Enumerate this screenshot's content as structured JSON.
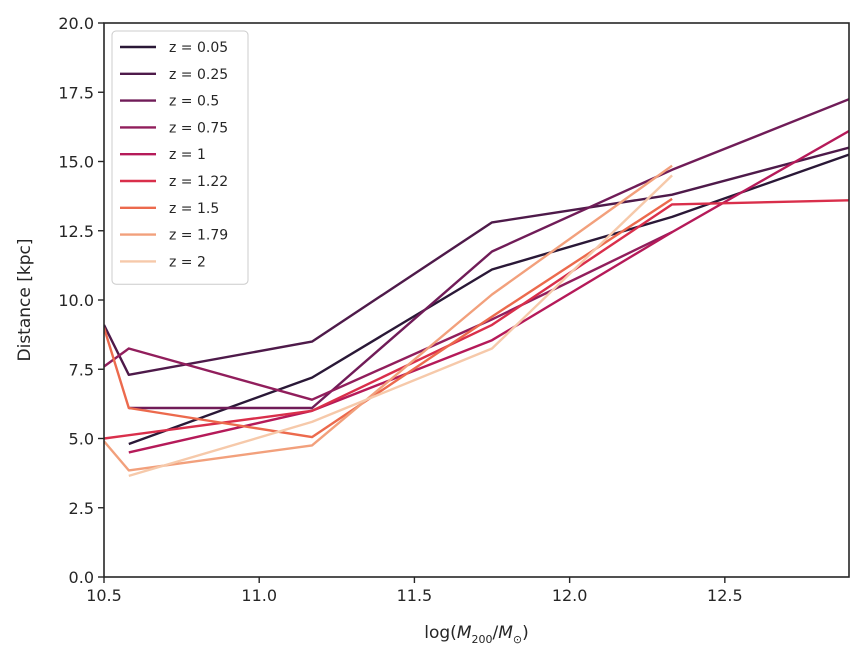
{
  "chart_data": {
    "type": "line",
    "title": "",
    "xlabel_parts": {
      "prefix": "log(",
      "m1": "M",
      "sub1": "200",
      "slash": "/",
      "m2": "M",
      "sub2": "⊙",
      "suffix": ")"
    },
    "ylabel": "Distance [kpc]",
    "xlim": [
      10.5,
      12.9
    ],
    "ylim": [
      0,
      20
    ],
    "xticks": [
      "10.5",
      "11.0",
      "11.5",
      "12.0",
      "12.5"
    ],
    "yticks": [
      "0.0",
      "2.5",
      "5.0",
      "7.5",
      "10.0",
      "12.5",
      "15.0",
      "17.5",
      "20.0"
    ],
    "legend_position": "upper-left",
    "series": [
      {
        "name": "z = 0.05",
        "color": "#2a1837",
        "x": [
          10.58,
          11.17,
          11.75,
          12.33,
          12.9
        ],
        "y": [
          4.8,
          7.2,
          11.1,
          13.0,
          15.25
        ]
      },
      {
        "name": "z = 0.25",
        "color": "#4e1a4a",
        "x": [
          10.5,
          10.58,
          11.17,
          11.75,
          12.33,
          12.9
        ],
        "y": [
          9.1,
          7.3,
          8.5,
          12.8,
          13.8,
          15.5
        ]
      },
      {
        "name": "z = 0.5",
        "color": "#701c58",
        "x": [
          10.58,
          11.17,
          11.75,
          12.33,
          12.9
        ],
        "y": [
          6.1,
          6.1,
          11.75,
          14.7,
          17.25
        ]
      },
      {
        "name": "z = 0.75",
        "color": "#911e5c",
        "x": [
          10.5,
          10.58,
          11.17,
          11.75,
          12.33
        ],
        "y": [
          7.6,
          8.25,
          6.4,
          9.3,
          12.45
        ]
      },
      {
        "name": "z = 1",
        "color": "#b51a59",
        "x": [
          10.58,
          11.17,
          11.75,
          12.33,
          12.9
        ],
        "y": [
          4.5,
          6.0,
          8.55,
          12.45,
          16.1
        ]
      },
      {
        "name": "z = 1.22",
        "color": "#d92f4b",
        "x": [
          10.5,
          11.17,
          11.75,
          12.33,
          12.9
        ],
        "y": [
          5.0,
          6.0,
          9.1,
          13.45,
          13.6
        ]
      },
      {
        "name": "z = 1.5",
        "color": "#ec6a4d",
        "x": [
          10.5,
          10.58,
          11.17,
          11.75,
          12.33
        ],
        "y": [
          9.0,
          6.1,
          5.05,
          9.4,
          13.65
        ]
      },
      {
        "name": "z = 1.79",
        "color": "#f2a07c",
        "x": [
          10.5,
          10.58,
          11.17,
          11.75,
          12.33
        ],
        "y": [
          4.9,
          3.85,
          4.75,
          10.2,
          14.85
        ]
      },
      {
        "name": "z = 2",
        "color": "#f6c9aa",
        "x": [
          10.58,
          11.17,
          11.75,
          12.33
        ],
        "y": [
          3.65,
          5.6,
          8.25,
          14.5
        ]
      }
    ]
  }
}
